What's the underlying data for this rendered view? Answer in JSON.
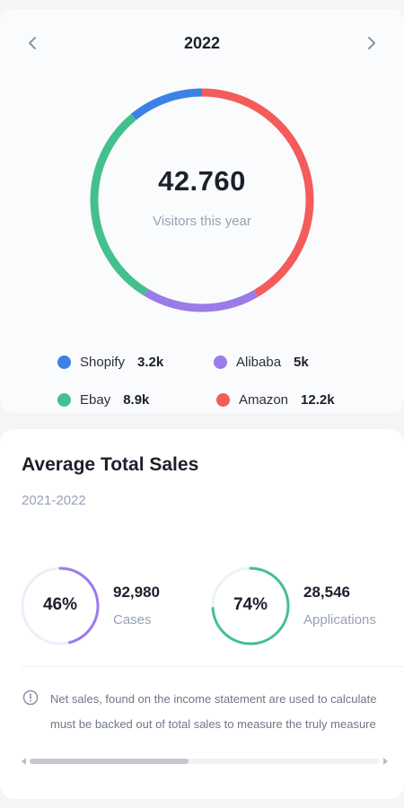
{
  "header": {
    "year": "2022",
    "prev_icon": "chevron-left-icon",
    "next_icon": "chevron-right-icon"
  },
  "visitors": {
    "total": "42.760",
    "caption": "Visitors this year",
    "segments": [
      {
        "name": "Shopify",
        "value": 3.2,
        "color": "#3b82e6"
      },
      {
        "name": "Alibaba",
        "value": 5.0,
        "color": "#9b7be8"
      },
      {
        "name": "Ebay",
        "value": 8.9,
        "color": "#44c08e"
      },
      {
        "name": "Amazon",
        "value": 12.2,
        "color": "#f45b5b"
      }
    ],
    "legend": [
      {
        "name": "Shopify",
        "value": "3.2k",
        "color": "#3b82e6"
      },
      {
        "name": "Alibaba",
        "value": "5k",
        "color": "#9b7be8"
      },
      {
        "name": "Ebay",
        "value": "8.9k",
        "color": "#44c08e"
      },
      {
        "name": "Amazon",
        "value": "12.2k",
        "color": "#f45b5b"
      }
    ]
  },
  "sales": {
    "title": "Average Total Sales",
    "range": "2021-2022",
    "stats": [
      {
        "percent": "46%",
        "fraction": 0.46,
        "value": "92,980",
        "label": "Cases",
        "color": "#9b7be8",
        "track": "#f0ecfb"
      },
      {
        "percent": "74%",
        "fraction": 0.74,
        "value": "28,546",
        "label": "Applications",
        "color": "#44c08e",
        "track": "#e8f6f0"
      }
    ],
    "note_line1": "Net sales, found on the income statement are used to calculate",
    "note_line2": "must be backed out of total sales to measure the truly measure"
  },
  "scrollbar": {
    "position": 0.0
  }
}
